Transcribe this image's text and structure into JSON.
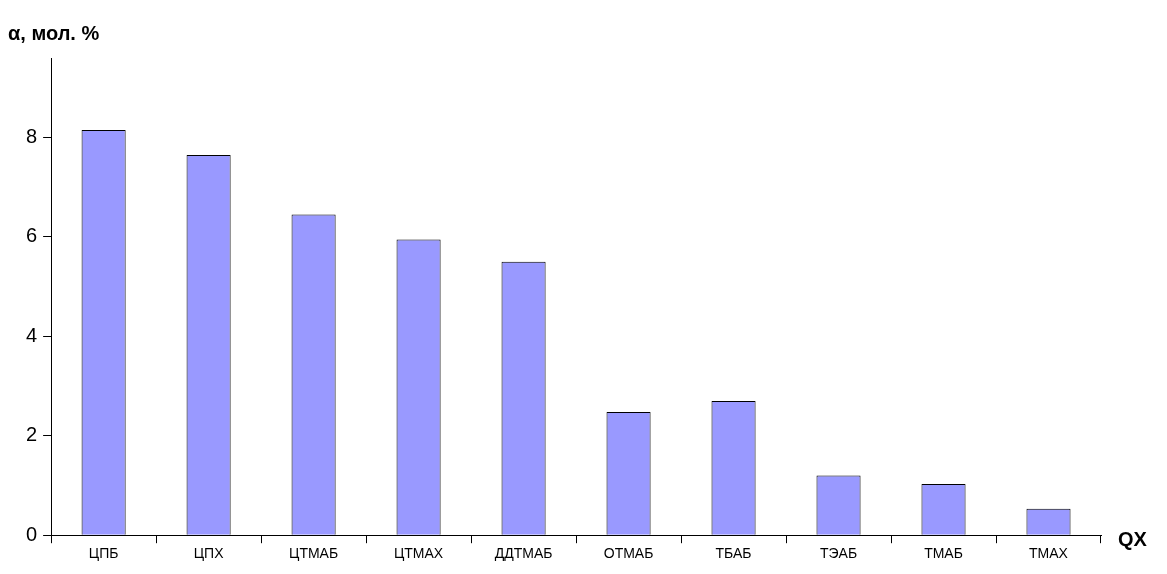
{
  "chart_data": {
    "type": "bar",
    "ylabel": "α, мол. %",
    "xlabel": "QX",
    "categories": [
      "ЦПБ",
      "ЦПХ",
      "ЦТМАБ",
      "ЦТМАХ",
      "ДДТМАБ",
      "ОТМАБ",
      "ТБАБ",
      "ТЭАБ",
      "ТМАБ",
      "ТМАХ"
    ],
    "values": [
      8.15,
      7.65,
      6.45,
      5.95,
      5.5,
      2.48,
      2.7,
      1.2,
      1.03,
      0.53
    ],
    "color": "#9999ff",
    "ylim": [
      0,
      9.6
    ],
    "yticks": [
      0,
      2,
      4,
      6,
      8
    ],
    "grid": false,
    "legend": false
  }
}
